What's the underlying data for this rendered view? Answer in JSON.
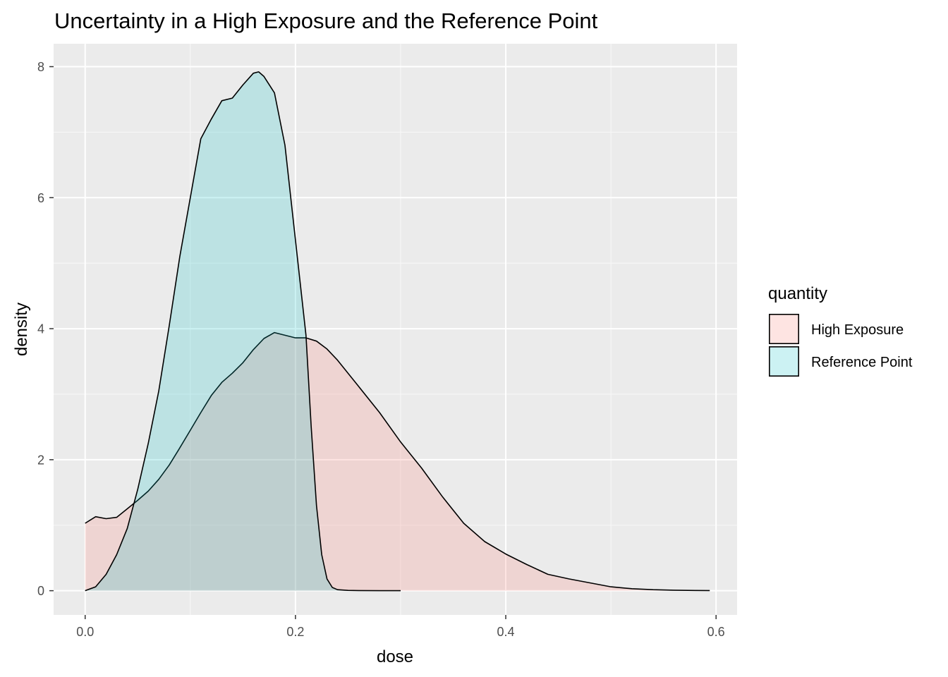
{
  "chart_data": {
    "type": "area",
    "title": "Uncertainty in a High Exposure and the Reference Point",
    "xlabel": "dose",
    "ylabel": "density",
    "xlim": [
      -0.03,
      0.62
    ],
    "ylim": [
      -0.37,
      8.35
    ],
    "x_ticks": [
      0.0,
      0.2,
      0.4,
      0.6
    ],
    "x_tick_labels": [
      "0.0",
      "0.2",
      "0.4",
      "0.6"
    ],
    "y_ticks": [
      0,
      2,
      4,
      6,
      8
    ],
    "y_tick_labels": [
      "0",
      "2",
      "4",
      "6",
      "8"
    ],
    "grid": true,
    "legend": {
      "title": "quantity",
      "position": "right"
    },
    "series": [
      {
        "name": "High Exposure",
        "fill": "#f8766d",
        "x": [
          0.0,
          0.01,
          0.02,
          0.03,
          0.04,
          0.05,
          0.06,
          0.07,
          0.08,
          0.09,
          0.1,
          0.11,
          0.12,
          0.13,
          0.14,
          0.15,
          0.16,
          0.17,
          0.18,
          0.19,
          0.2,
          0.21,
          0.22,
          0.23,
          0.24,
          0.25,
          0.26,
          0.28,
          0.3,
          0.32,
          0.34,
          0.36,
          0.38,
          0.4,
          0.42,
          0.44,
          0.46,
          0.48,
          0.5,
          0.52,
          0.54,
          0.56,
          0.58,
          0.594
        ],
        "values": [
          1.03,
          1.13,
          1.1,
          1.12,
          1.25,
          1.38,
          1.52,
          1.7,
          1.92,
          2.18,
          2.45,
          2.72,
          2.98,
          3.18,
          3.32,
          3.48,
          3.68,
          3.85,
          3.94,
          3.9,
          3.86,
          3.86,
          3.81,
          3.69,
          3.52,
          3.32,
          3.12,
          2.72,
          2.27,
          1.87,
          1.43,
          1.03,
          0.75,
          0.56,
          0.4,
          0.25,
          0.18,
          0.12,
          0.06,
          0.03,
          0.015,
          0.008,
          0.004,
          0.003
        ]
      },
      {
        "name": "Reference Point",
        "fill": "#00bfc4",
        "x": [
          0.0,
          0.01,
          0.02,
          0.03,
          0.04,
          0.05,
          0.06,
          0.07,
          0.08,
          0.09,
          0.1,
          0.11,
          0.12,
          0.13,
          0.14,
          0.15,
          0.16,
          0.165,
          0.17,
          0.18,
          0.19,
          0.2,
          0.21,
          0.215,
          0.22,
          0.225,
          0.23,
          0.235,
          0.24,
          0.25,
          0.26,
          0.28,
          0.3
        ],
        "values": [
          0.0,
          0.06,
          0.25,
          0.55,
          0.95,
          1.55,
          2.25,
          3.05,
          4.05,
          5.1,
          6.0,
          6.9,
          7.2,
          7.48,
          7.52,
          7.72,
          7.9,
          7.92,
          7.85,
          7.6,
          6.8,
          5.35,
          3.9,
          2.5,
          1.3,
          0.55,
          0.18,
          0.05,
          0.015,
          0.005,
          0.002,
          0.0,
          0.0
        ]
      }
    ]
  }
}
